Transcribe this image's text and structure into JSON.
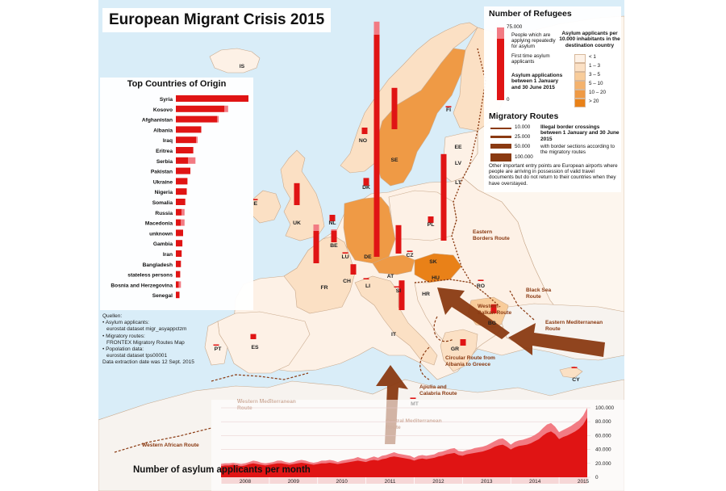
{
  "title": "European Migrant Crisis 2015",
  "top_countries": {
    "title": "Top Countries of Origin",
    "items": [
      {
        "name": "Syria",
        "value": 100,
        "repeat": 0
      },
      {
        "name": "Kosovo",
        "value": 67,
        "repeat": 5
      },
      {
        "name": "Afghanistan",
        "value": 57,
        "repeat": 2
      },
      {
        "name": "Albania",
        "value": 35,
        "repeat": 0
      },
      {
        "name": "Iraq",
        "value": 28,
        "repeat": 2
      },
      {
        "name": "Eritrea",
        "value": 24,
        "repeat": 0
      },
      {
        "name": "Serbia",
        "value": 17,
        "repeat": 10
      },
      {
        "name": "Pakistan",
        "value": 20,
        "repeat": 0
      },
      {
        "name": "Ukraine",
        "value": 16,
        "repeat": 0
      },
      {
        "name": "Nigeria",
        "value": 15,
        "repeat": 0
      },
      {
        "name": "Somalia",
        "value": 13,
        "repeat": 0
      },
      {
        "name": "Russia",
        "value": 8,
        "repeat": 4
      },
      {
        "name": "Macedonia",
        "value": 7,
        "repeat": 5
      },
      {
        "name": "unknown",
        "value": 10,
        "repeat": 0
      },
      {
        "name": "Gambia",
        "value": 9,
        "repeat": 0
      },
      {
        "name": "Iran",
        "value": 8,
        "repeat": 0
      },
      {
        "name": "Bangladesh",
        "value": 7,
        "repeat": 0
      },
      {
        "name": "stateless persons",
        "value": 6,
        "repeat": 0
      },
      {
        "name": "Bosnia and Herzegovina",
        "value": 4,
        "repeat": 3
      },
      {
        "name": "Senegal",
        "value": 5,
        "repeat": 0
      }
    ]
  },
  "sources": [
    "Quellen:",
    "• Asylum applicants:",
    "  eurostat dataset migr_asyappctzm",
    "• Migratory routes:",
    "  FRONTEX Migratory Routes Map",
    "• Popolation data:",
    "  eurostat dataset tps00001",
    "Data extraction date was 12 Sept. 2015"
  ],
  "legend": {
    "refugees_title": "Number of Refugees",
    "bar_max": "75.000",
    "bar_zero": "0",
    "repeat_label": "People which are applying repeatedly for asylum",
    "first_label": "First time asylum applicants",
    "period_label": "Asylum applications between 1 January and 30 June 2015",
    "density_title": "Asylum applicants per 10.000 inhabitants in the destination country",
    "classes": [
      {
        "label": "< 1",
        "color": "#fdf1e6"
      },
      {
        "label": "1 – 3",
        "color": "#fbe0c4"
      },
      {
        "label": "3 – 5",
        "color": "#f8cc9a"
      },
      {
        "label": "5 – 10",
        "color": "#f4b26d"
      },
      {
        "label": "10 – 20",
        "color": "#ef9a45"
      },
      {
        "label": "> 20",
        "color": "#e98118"
      }
    ],
    "routes_title": "Migratory Routes",
    "route_widths": [
      "10.000",
      "25.000",
      "50.000",
      "100.000"
    ],
    "routes_label": "Illegal border crossings between 1 January and 30 June 2015",
    "routes_sub": "with border sections according to the migratory routes",
    "airports_note": "Other important entry points are European airports where people are arriving in possession of valid travel documents but do not return to their countries when they have overstayed."
  },
  "countries": [
    {
      "code": "IS",
      "color": "#fdf1e6"
    },
    {
      "code": "NO",
      "first": 5,
      "repeat": 0,
      "color": "#fbe0c4"
    },
    {
      "code": "SE",
      "first": 32,
      "repeat": 0,
      "color": "#ef9a45"
    },
    {
      "code": "FI",
      "first": 1,
      "repeat": 0,
      "color": "#fbe0c4"
    },
    {
      "code": "EE",
      "color": "#fdf1e6"
    },
    {
      "code": "LV",
      "color": "#fdf1e6"
    },
    {
      "code": "LT",
      "color": "#fdf1e6"
    },
    {
      "code": "DK",
      "first": 6,
      "repeat": 0,
      "color": "#f8cc9a"
    },
    {
      "code": "IE",
      "first": 1,
      "repeat": 0,
      "color": "#fbe0c4"
    },
    {
      "code": "UK",
      "first": 17,
      "repeat": 0,
      "color": "#fbe0c4"
    },
    {
      "code": "NL",
      "first": 5,
      "repeat": 0,
      "color": "#fbe0c4"
    },
    {
      "code": "BE",
      "first": 9,
      "repeat": 1,
      "color": "#f8cc9a"
    },
    {
      "code": "LU",
      "first": 1,
      "repeat": 0,
      "color": "#f4b26d"
    },
    {
      "code": "DE",
      "first": 172,
      "repeat": 10,
      "color": "#ef9a45"
    },
    {
      "code": "PL",
      "first": 5,
      "repeat": 0,
      "color": "#fdf1e6"
    },
    {
      "code": "CZ",
      "first": 1,
      "repeat": 0,
      "color": "#fdf1e6"
    },
    {
      "code": "SK",
      "color": "#fdf1e6"
    },
    {
      "code": "AT",
      "first": 22,
      "repeat": 0,
      "color": "#ef9a45"
    },
    {
      "code": "HU",
      "first": 67,
      "repeat": 0,
      "color": "#e98118"
    },
    {
      "code": "FR",
      "first": 25,
      "repeat": 5,
      "color": "#fbe0c4"
    },
    {
      "code": "CH",
      "first": 8,
      "repeat": 0,
      "color": "#f8cc9a"
    },
    {
      "code": "LI",
      "first": 1,
      "repeat": 0,
      "color": "#f8cc9a"
    },
    {
      "code": "SI",
      "first": 0,
      "repeat": 0,
      "color": "#fdf1e6"
    },
    {
      "code": "HR",
      "color": "#fdf1e6"
    },
    {
      "code": "RO",
      "first": 1,
      "repeat": 0,
      "color": "#fdf1e6"
    },
    {
      "code": "BG",
      "first": 7,
      "repeat": 0,
      "color": "#f8cc9a"
    },
    {
      "code": "GR",
      "first": 5,
      "repeat": 0,
      "color": "#fbe0c4"
    },
    {
      "code": "IT",
      "first": 23,
      "repeat": 0,
      "color": "#fbe0c4"
    },
    {
      "code": "ES",
      "first": 4,
      "repeat": 0,
      "color": "#fdf1e6"
    },
    {
      "code": "PT",
      "first": 0,
      "repeat": 0,
      "color": "#fdf1e6"
    },
    {
      "code": "MT",
      "first": 1,
      "repeat": 0,
      "color": "#f8cc9a"
    },
    {
      "code": "CY",
      "first": 1,
      "repeat": 0,
      "color": "#fbe0c4"
    }
  ],
  "routes": [
    {
      "name": "Eastern Borders Route"
    },
    {
      "name": "Black Sea Route"
    },
    {
      "name": "Western Balkan Route"
    },
    {
      "name": "Eastern Mediterranean Route"
    },
    {
      "name": "Circular Route from Albania to Greece"
    },
    {
      "name": "Apulia and Calabria Route"
    },
    {
      "name": "Central Mediterranean Route"
    },
    {
      "name": "Western Mediterranean Route"
    },
    {
      "name": "Western African Route"
    }
  ],
  "timeseries": {
    "title": "Number of asylum applicants per month",
    "years": [
      "2008",
      "2009",
      "2010",
      "2011",
      "2012",
      "2013",
      "2014",
      "2015"
    ],
    "yticks": [
      "0",
      "20.000",
      "40.000",
      "60.000",
      "80.000",
      "100.000"
    ],
    "first": [
      16,
      17,
      17,
      18,
      17,
      16,
      17,
      19,
      20,
      19,
      18,
      17,
      18,
      19,
      20,
      20,
      19,
      18,
      19,
      20,
      21,
      20,
      19,
      18,
      19,
      20,
      20,
      21,
      20,
      19,
      20,
      21,
      22,
      23,
      24,
      23,
      22,
      24,
      25,
      24,
      26,
      27,
      29,
      30,
      29,
      28,
      27,
      26,
      24,
      26,
      27,
      26,
      27,
      28,
      30,
      31,
      33,
      34,
      35,
      32,
      31,
      33,
      34,
      35,
      36,
      37,
      39,
      41,
      44,
      46,
      47,
      44,
      40,
      43,
      45,
      46,
      47,
      49,
      52,
      55,
      60,
      64,
      66,
      62,
      55,
      58,
      60,
      63,
      66,
      70,
      76,
      86
    ],
    "repeat": [
      3,
      3,
      3,
      3,
      3,
      3,
      3,
      3,
      4,
      4,
      3,
      3,
      3,
      3,
      4,
      4,
      3,
      3,
      3,
      4,
      4,
      4,
      3,
      3,
      3,
      4,
      4,
      4,
      4,
      3,
      4,
      4,
      4,
      4,
      5,
      4,
      4,
      4,
      5,
      4,
      5,
      5,
      5,
      6,
      5,
      5,
      5,
      5,
      4,
      5,
      5,
      5,
      5,
      5,
      6,
      6,
      6,
      7,
      7,
      6,
      6,
      6,
      6,
      7,
      7,
      7,
      7,
      8,
      8,
      9,
      9,
      8,
      7,
      8,
      8,
      8,
      9,
      9,
      9,
      10,
      11,
      12,
      12,
      11,
      10,
      10,
      11,
      11,
      12,
      12,
      13,
      14
    ]
  }
}
